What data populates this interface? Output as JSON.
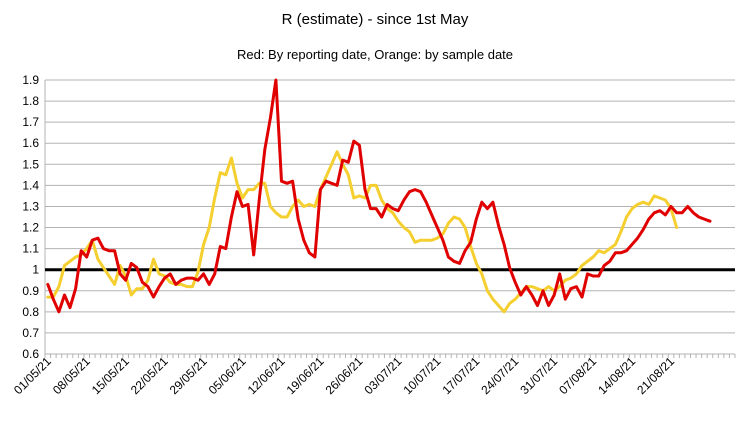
{
  "chart_data": {
    "type": "line",
    "title": "R (estimate) - since 1st May",
    "subtitle": "Red: By reporting date, Orange: by sample date",
    "xlabel": "",
    "ylabel": "",
    "ylim": [
      0.6,
      1.9
    ],
    "y_ticks": [
      "0.6",
      "0.7",
      "0.8",
      "0.9",
      "1",
      "1.1",
      "1.2",
      "1.3",
      "1.4",
      "1.5",
      "1.6",
      "1.7",
      "1.8",
      "1.9"
    ],
    "x_start": "01/05/21",
    "x_tick_labels": [
      "01/05/21",
      "08/05/21",
      "15/05/21",
      "22/05/21",
      "29/05/21",
      "05/06/21",
      "12/06/21",
      "19/06/21",
      "26/06/21",
      "03/07/21",
      "10/07/21",
      "17/07/21",
      "24/07/21",
      "31/07/21",
      "07/08/21",
      "14/08/21",
      "21/08/21"
    ],
    "reference_line": {
      "y": 1,
      "color": "#000000"
    },
    "grid": {
      "horizontal": true,
      "vertical": false
    },
    "series": [
      {
        "name": "By reporting date",
        "color": "#e00000",
        "values": [
          0.93,
          0.86,
          0.8,
          0.88,
          0.82,
          0.91,
          1.09,
          1.06,
          1.14,
          1.15,
          1.1,
          1.09,
          1.09,
          0.98,
          0.95,
          1.03,
          1.01,
          0.94,
          0.92,
          0.87,
          0.92,
          0.96,
          0.98,
          0.93,
          0.95,
          0.96,
          0.96,
          0.95,
          0.98,
          0.93,
          0.98,
          1.11,
          1.1,
          1.25,
          1.37,
          1.3,
          1.31,
          1.07,
          1.33,
          1.57,
          1.72,
          1.9,
          1.42,
          1.41,
          1.42,
          1.24,
          1.14,
          1.08,
          1.06,
          1.38,
          1.42,
          1.41,
          1.4,
          1.52,
          1.51,
          1.61,
          1.59,
          1.38,
          1.29,
          1.29,
          1.25,
          1.31,
          1.29,
          1.28,
          1.33,
          1.37,
          1.38,
          1.37,
          1.32,
          1.26,
          1.2,
          1.14,
          1.06,
          1.04,
          1.03,
          1.09,
          1.13,
          1.24,
          1.32,
          1.29,
          1.32,
          1.21,
          1.12,
          1.01,
          0.94,
          0.88,
          0.92,
          0.88,
          0.83,
          0.9,
          0.83,
          0.88,
          0.98,
          0.86,
          0.91,
          0.92,
          0.87,
          0.98,
          0.97,
          0.97,
          1.02,
          1.04,
          1.08,
          1.08,
          1.09,
          1.12,
          1.15,
          1.19,
          1.24,
          1.27,
          1.28,
          1.26,
          1.3,
          1.27,
          1.27,
          1.3,
          1.27,
          1.25,
          1.24,
          1.23
        ],
        "start_index": 0
      },
      {
        "name": "by sample date",
        "color": "#f5cf2f",
        "values": [
          0.87,
          0.87,
          0.92,
          1.02,
          1.04,
          1.06,
          1.07,
          1.1,
          1.14,
          1.05,
          1.01,
          0.97,
          0.93,
          1.02,
          0.97,
          0.88,
          0.91,
          0.91,
          0.95,
          1.05,
          0.98,
          0.97,
          0.94,
          0.93,
          0.93,
          0.92,
          0.92,
          0.99,
          1.12,
          1.2,
          1.34,
          1.46,
          1.45,
          1.53,
          1.41,
          1.34,
          1.38,
          1.38,
          1.41,
          1.41,
          1.3,
          1.27,
          1.25,
          1.25,
          1.3,
          1.33,
          1.3,
          1.31,
          1.3,
          1.38,
          1.44,
          1.5,
          1.56,
          1.5,
          1.45,
          1.34,
          1.35,
          1.34,
          1.4,
          1.4,
          1.33,
          1.29,
          1.27,
          1.23,
          1.2,
          1.18,
          1.13,
          1.14,
          1.14,
          1.14,
          1.15,
          1.17,
          1.22,
          1.25,
          1.24,
          1.2,
          1.11,
          1.03,
          0.98,
          0.9,
          0.86,
          0.83,
          0.8,
          0.84,
          0.86,
          0.89,
          0.92,
          0.92,
          0.91,
          0.9,
          0.92,
          0.9,
          0.92,
          0.95,
          0.96,
          0.98,
          1.02,
          1.04,
          1.06,
          1.09,
          1.08,
          1.1,
          1.12,
          1.18,
          1.25,
          1.29,
          1.31,
          1.32,
          1.31,
          1.35,
          1.34,
          1.33,
          1.29,
          1.2
        ],
        "start_index": 0
      }
    ]
  }
}
